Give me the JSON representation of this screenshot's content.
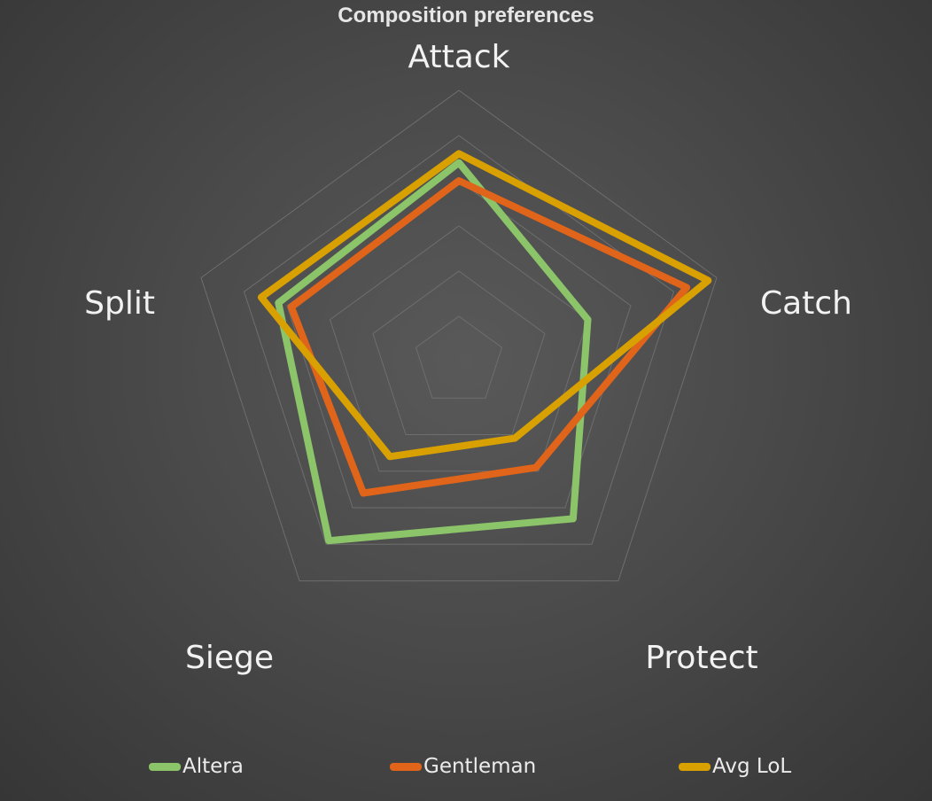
{
  "chart_data": {
    "type": "radar",
    "title": "Composition preferences",
    "axes": [
      "Attack",
      "Catch",
      "Protect",
      "Siege",
      "Split"
    ],
    "rings": 6,
    "range": [
      0,
      6
    ],
    "grid": true,
    "legend_position": "bottom",
    "series": [
      {
        "name": "Altera",
        "color": "#8cc46a",
        "values": [
          4.4,
          3.0,
          4.3,
          4.9,
          4.2
        ]
      },
      {
        "name": "Gentleman",
        "color": "#e06419",
        "values": [
          4.0,
          5.3,
          2.9,
          3.6,
          3.9
        ]
      },
      {
        "name": "Avg LoL",
        "color": "#d8a000",
        "values": [
          4.6,
          5.8,
          2.1,
          2.6,
          4.6
        ]
      }
    ]
  }
}
